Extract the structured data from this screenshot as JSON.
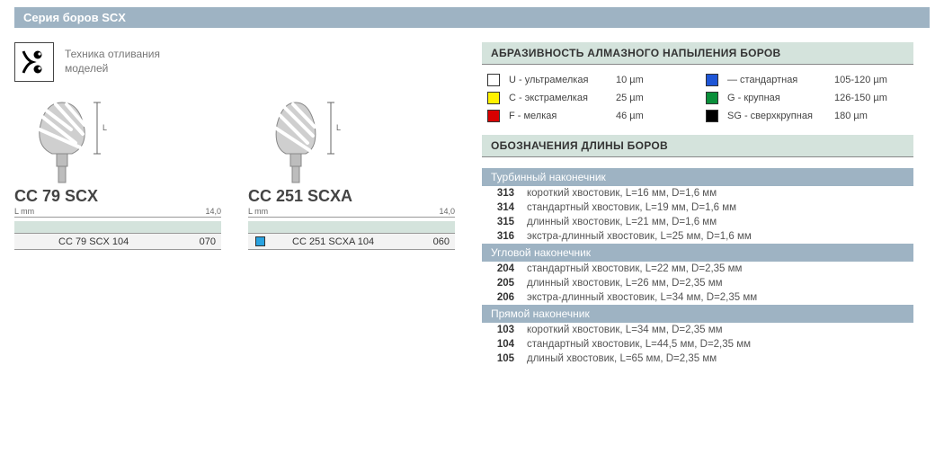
{
  "title": "Серия боров SCX",
  "technique": {
    "line1": "Техника отливания",
    "line2": "моделей"
  },
  "products": [
    {
      "name": "CC 79 SCX",
      "lmm_label": "L mm",
      "lmm_value": "14,0",
      "row_swatch": null,
      "row_code": "CC 79 SCX 104",
      "row_num": "070"
    },
    {
      "name": "CC 251 SCXA",
      "lmm_label": "L mm",
      "lmm_value": "14,0",
      "row_swatch": "#2aa3e0",
      "row_code": "CC 251 SCXA 104",
      "row_num": "060"
    }
  ],
  "abrasiveness": {
    "title": "АБРАЗИВНОСТЬ АЛМАЗНОГО НАПЫЛЕНИЯ БОРОВ",
    "items": [
      {
        "color": "#ffffff",
        "label": "U - ультрамелкая",
        "value": "10 µm"
      },
      {
        "color": "#1e56d6",
        "label": "—   стандартная",
        "value": "105-120 µm"
      },
      {
        "color": "#fff200",
        "label": "C - экстрамелкая",
        "value": "25 µm"
      },
      {
        "color": "#0a8f3a",
        "label": "G - крупная",
        "value": "126-150 µm"
      },
      {
        "color": "#d80000",
        "label": "F - мелкая",
        "value": "46 µm"
      },
      {
        "color": "#000000",
        "label": "SG - сверхкрупная",
        "value": "180 µm"
      }
    ]
  },
  "lengths": {
    "title": "ОБОЗНАЧЕНИЯ ДЛИНЫ БОРОВ",
    "groups": [
      {
        "header": "Турбинный наконечник",
        "rows": [
          {
            "code": "313",
            "desc": "короткий хвостовик, L=16 мм, D=1,6 мм"
          },
          {
            "code": "314",
            "desc": "стандартный хвостовик, L=19 мм, D=1,6 мм"
          },
          {
            "code": "315",
            "desc": "длинный хвостовик, L=21 мм, D=1,6 мм"
          },
          {
            "code": "316",
            "desc": "экстра-длинный хвостовик, L=25 мм, D=1,6 мм"
          }
        ]
      },
      {
        "header": "Угловой наконечник",
        "rows": [
          {
            "code": "204",
            "desc": "стандартный хвостовик, L=22 мм, D=2,35 мм"
          },
          {
            "code": "205",
            "desc": "длинный хвостовик, L=26 мм, D=2,35 мм"
          },
          {
            "code": "206",
            "desc": "экстра-длинный хвостовик, L=34 мм, D=2,35 мм"
          }
        ]
      },
      {
        "header": "Прямой наконечник",
        "rows": [
          {
            "code": "103",
            "desc": "короткий хвостовик, L=34 мм, D=2,35 мм"
          },
          {
            "code": "104",
            "desc": "стандартный хвостовик, L=44,5 мм, D=2,35 мм"
          },
          {
            "code": "105",
            "desc": "длиный хвостовик, L=65 мм, D=2,35 мм"
          }
        ]
      }
    ]
  },
  "colors": {
    "title_bar": "#9eb3c3",
    "section_bg": "#d4e3dc",
    "row_bg": "#f3f3f3"
  }
}
